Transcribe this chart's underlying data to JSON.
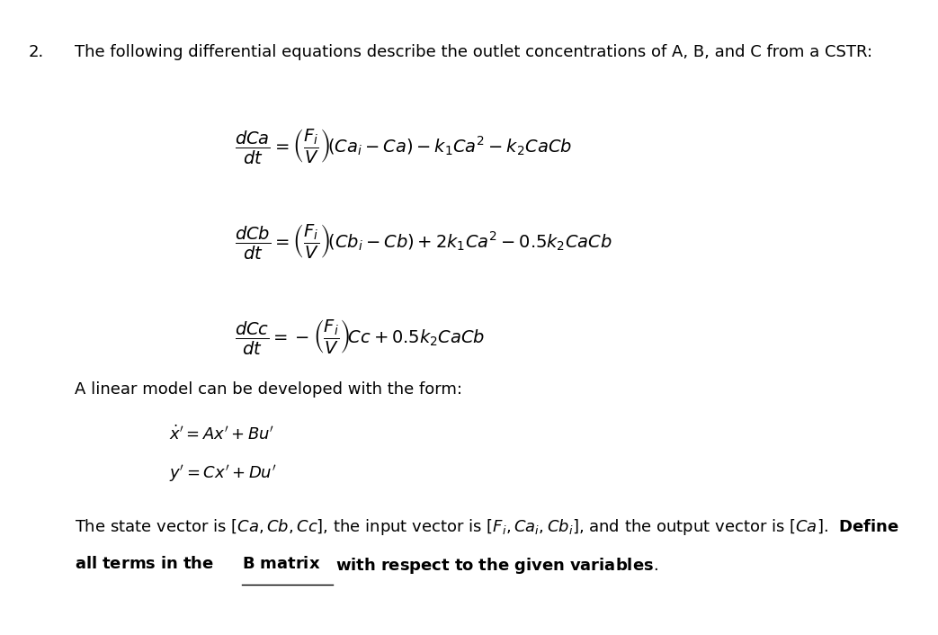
{
  "figsize": [
    10.43,
    7.06
  ],
  "dpi": 100,
  "bg_color": "#ffffff",
  "number_text": "2.",
  "header_text": "The following differential equations describe the outlet concentrations of A, B, and C from a CSTR:",
  "eq1": "$\\dfrac{dCa}{dt} = \\left(\\dfrac{F_i}{V}\\right)\\!\\left(Ca_i - Ca\\right) - k_1Ca^2 - k_2CaCb$",
  "eq2": "$\\dfrac{dCb}{dt} = \\left(\\dfrac{F_i}{V}\\right)\\!\\left(Cb_i - Cb\\right) + 2k_1Ca^2 - 0.5k_2CaCb$",
  "eq3": "$\\dfrac{dCc}{dt} = -\\left(\\dfrac{F_i}{V}\\right)\\!Cc + 0.5k_2CaCb$",
  "linear_intro": "A linear model can be developed with the form:",
  "eq_state1": "$\\dot{x}'= Ax' + Bu'$",
  "eq_state2": "$y'= Cx' + Du'$",
  "header_fontsize": 13,
  "eq_fontsize": 14,
  "body_fontsize": 13
}
